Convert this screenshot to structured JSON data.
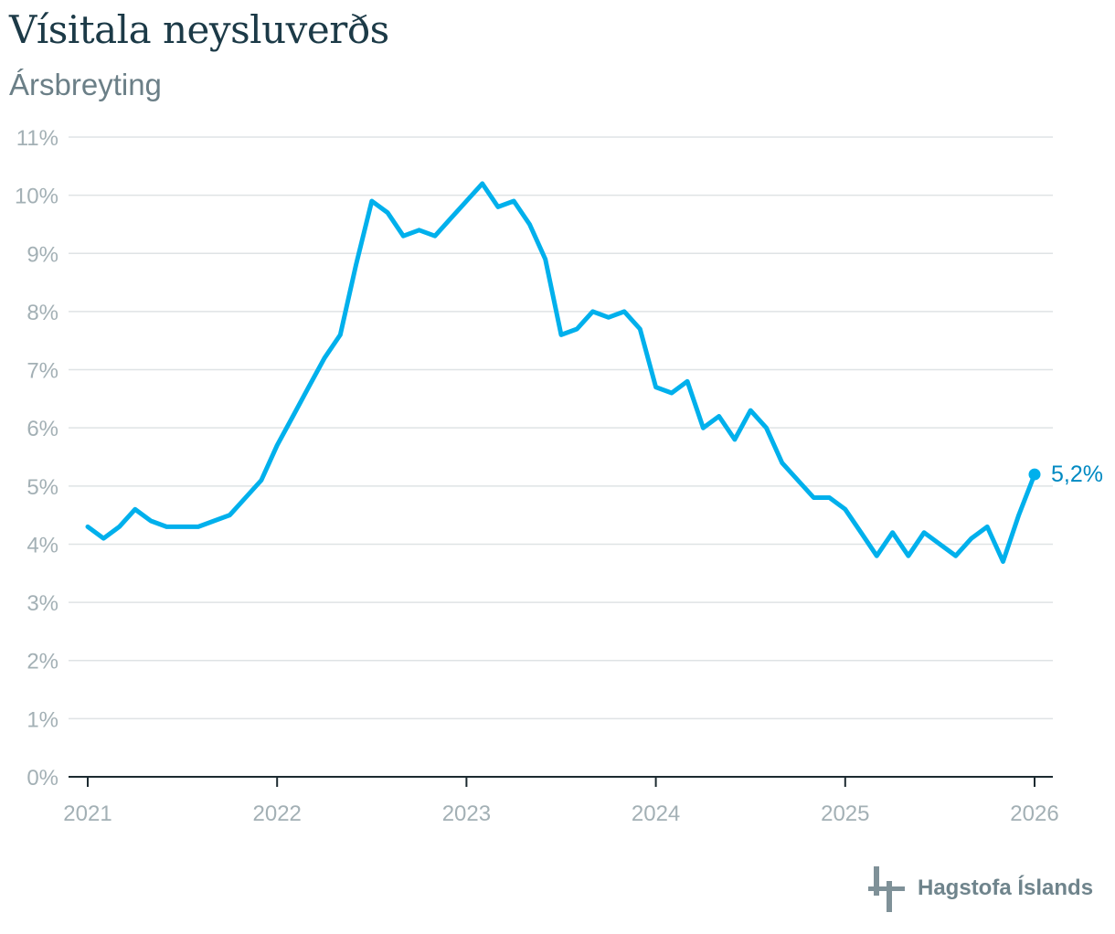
{
  "title": "Vísitala neysluverðs",
  "subtitle": "Ársbreyting",
  "logo_text": "Hagstofa Íslands",
  "colors": {
    "line": "#00b0ec",
    "end_label": "#0089c2",
    "grid": "#dfe3e5",
    "tick": "#a3b0b5",
    "title": "#1c3a47"
  },
  "chart_data": {
    "type": "line",
    "title": "Vísitala neysluverðs",
    "subtitle": "Ársbreyting",
    "xlabel": "",
    "ylabel": "",
    "ylim": [
      0,
      11
    ],
    "xlim": [
      "2021-01",
      "2026-01"
    ],
    "grid": true,
    "y_ticks": [
      "0%",
      "1%",
      "2%",
      "3%",
      "4%",
      "5%",
      "6%",
      "7%",
      "8%",
      "9%",
      "10%",
      "11%"
    ],
    "x_ticks": [
      "2021",
      "2022",
      "2023",
      "2024",
      "2025",
      "2026"
    ],
    "end_label": "5,2%",
    "series": [
      {
        "x": [
          "2021-01",
          "2021-02",
          "2021-03",
          "2021-04",
          "2021-05",
          "2021-06",
          "2021-07",
          "2021-08",
          "2021-09",
          "2021-10",
          "2021-11",
          "2021-12",
          "2022-01",
          "2022-02",
          "2022-03",
          "2022-04",
          "2022-05",
          "2022-06",
          "2022-07",
          "2022-08",
          "2022-09",
          "2022-10",
          "2022-11",
          "2022-12",
          "2023-01",
          "2023-02",
          "2023-03",
          "2023-04",
          "2023-05",
          "2023-06",
          "2023-07",
          "2023-08",
          "2023-09",
          "2023-10",
          "2023-11",
          "2023-12",
          "2024-01",
          "2024-02",
          "2024-03",
          "2024-04",
          "2024-05",
          "2024-06",
          "2024-07",
          "2024-08",
          "2024-09",
          "2024-10",
          "2024-11",
          "2024-12",
          "2025-01",
          "2025-02",
          "2025-03",
          "2025-04",
          "2025-05",
          "2025-06",
          "2025-07",
          "2025-08",
          "2025-09",
          "2025-10",
          "2025-11",
          "2025-12",
          "2026-01"
        ],
        "values": [
          4.3,
          4.1,
          4.3,
          4.6,
          4.4,
          4.3,
          4.3,
          4.3,
          4.4,
          4.5,
          4.8,
          5.1,
          5.7,
          6.2,
          6.7,
          7.2,
          7.6,
          8.8,
          9.9,
          9.7,
          9.3,
          9.4,
          9.3,
          9.6,
          9.9,
          10.2,
          9.8,
          9.9,
          9.5,
          8.9,
          7.6,
          7.7,
          8.0,
          7.9,
          8.0,
          7.7,
          6.7,
          6.6,
          6.8,
          6.0,
          6.2,
          5.8,
          6.3,
          6.0,
          5.4,
          5.1,
          4.8,
          4.8,
          4.6,
          4.2,
          3.8,
          4.2,
          3.8,
          4.2,
          4.0,
          3.8,
          4.1,
          4.3,
          3.7,
          4.5,
          5.2
        ]
      }
    ]
  }
}
